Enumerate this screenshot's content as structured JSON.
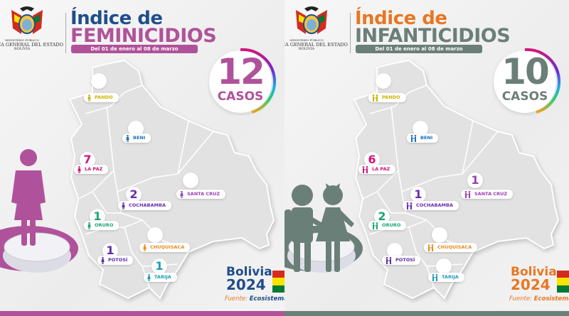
{
  "panels": [
    {
      "org": {
        "line1": "MINISTERIO PÚBLICO",
        "line2": "FISCALÍA GENERAL DEL ESTADO",
        "line3": "BOLIVIA"
      },
      "title_line1": "Índice de",
      "title_line2": "FEMINICIDIOS",
      "date_range": "Del 01 de enero al 08 de marzo",
      "total": "12",
      "total_label": "CASOS",
      "figure_icon": "woman-icon",
      "colors": {
        "title1": "#1f4e8c",
        "title2": "#b0529b",
        "accent": "#b0529b",
        "brand": "#1f4e8c"
      },
      "regions": [
        {
          "name": "PANDO",
          "count": null,
          "color": "#c8b400"
        },
        {
          "name": "BENI",
          "count": null,
          "color": "#1d6fb8"
        },
        {
          "name": "LA PAZ",
          "count": "7",
          "color": "#d4157a"
        },
        {
          "name": "COCHABAMBA",
          "count": "2",
          "color": "#6a2bb0"
        },
        {
          "name": "SANTA CRUZ",
          "count": null,
          "color": "#9b3fb5"
        },
        {
          "name": "ORURO",
          "count": "1",
          "color": "#1aa37a"
        },
        {
          "name": "CHUQUISACA",
          "count": null,
          "color": "#e88a1a"
        },
        {
          "name": "POTOSÍ",
          "count": "1",
          "color": "#5a2ca0"
        },
        {
          "name": "TARIJA",
          "count": "1",
          "color": "#1a9cb8"
        }
      ],
      "brand_line1": "Bolivia",
      "brand_line2": "2024",
      "source_label": "Fuente:",
      "source": "Ecosistema JL"
    },
    {
      "org": {
        "line1": "MINISTERIO PÚBLICO",
        "line2": "FISCALÍA GENERAL DEL ESTADO",
        "line3": "BOLIVIA"
      },
      "title_line1": "Índice de",
      "title_line2": "INFANTICIDIOS",
      "date_range": "Del 01 de enero al 08 de marzo",
      "total": "10",
      "total_label": "CASOS",
      "figure_icon": "children-icon",
      "colors": {
        "title1": "#e87722",
        "title2": "#6b7f79",
        "accent": "#6b7f79",
        "brand": "#e87722"
      },
      "regions": [
        {
          "name": "PANDO",
          "count": null,
          "color": "#c8b400"
        },
        {
          "name": "BENI",
          "count": null,
          "color": "#1d6fb8"
        },
        {
          "name": "LA PAZ",
          "count": "6",
          "color": "#d4157a"
        },
        {
          "name": "COCHABAMBA",
          "count": "1",
          "color": "#6a2bb0"
        },
        {
          "name": "SANTA CRUZ",
          "count": "1",
          "color": "#9b3fb5"
        },
        {
          "name": "ORURO",
          "count": "2",
          "color": "#1aa37a"
        },
        {
          "name": "CHUQUISACA",
          "count": null,
          "color": "#e88a1a"
        },
        {
          "name": "POTOSÍ",
          "count": null,
          "color": "#5a2ca0"
        },
        {
          "name": "TARIJA",
          "count": null,
          "color": "#1a9cb8"
        }
      ],
      "brand_line1": "Bolivia",
      "brand_line2": "2024",
      "source_label": "Fuente:",
      "source": "Ecosistema JL"
    }
  ],
  "flag_colors": [
    "#d52b1e",
    "#f9e300",
    "#007934"
  ]
}
